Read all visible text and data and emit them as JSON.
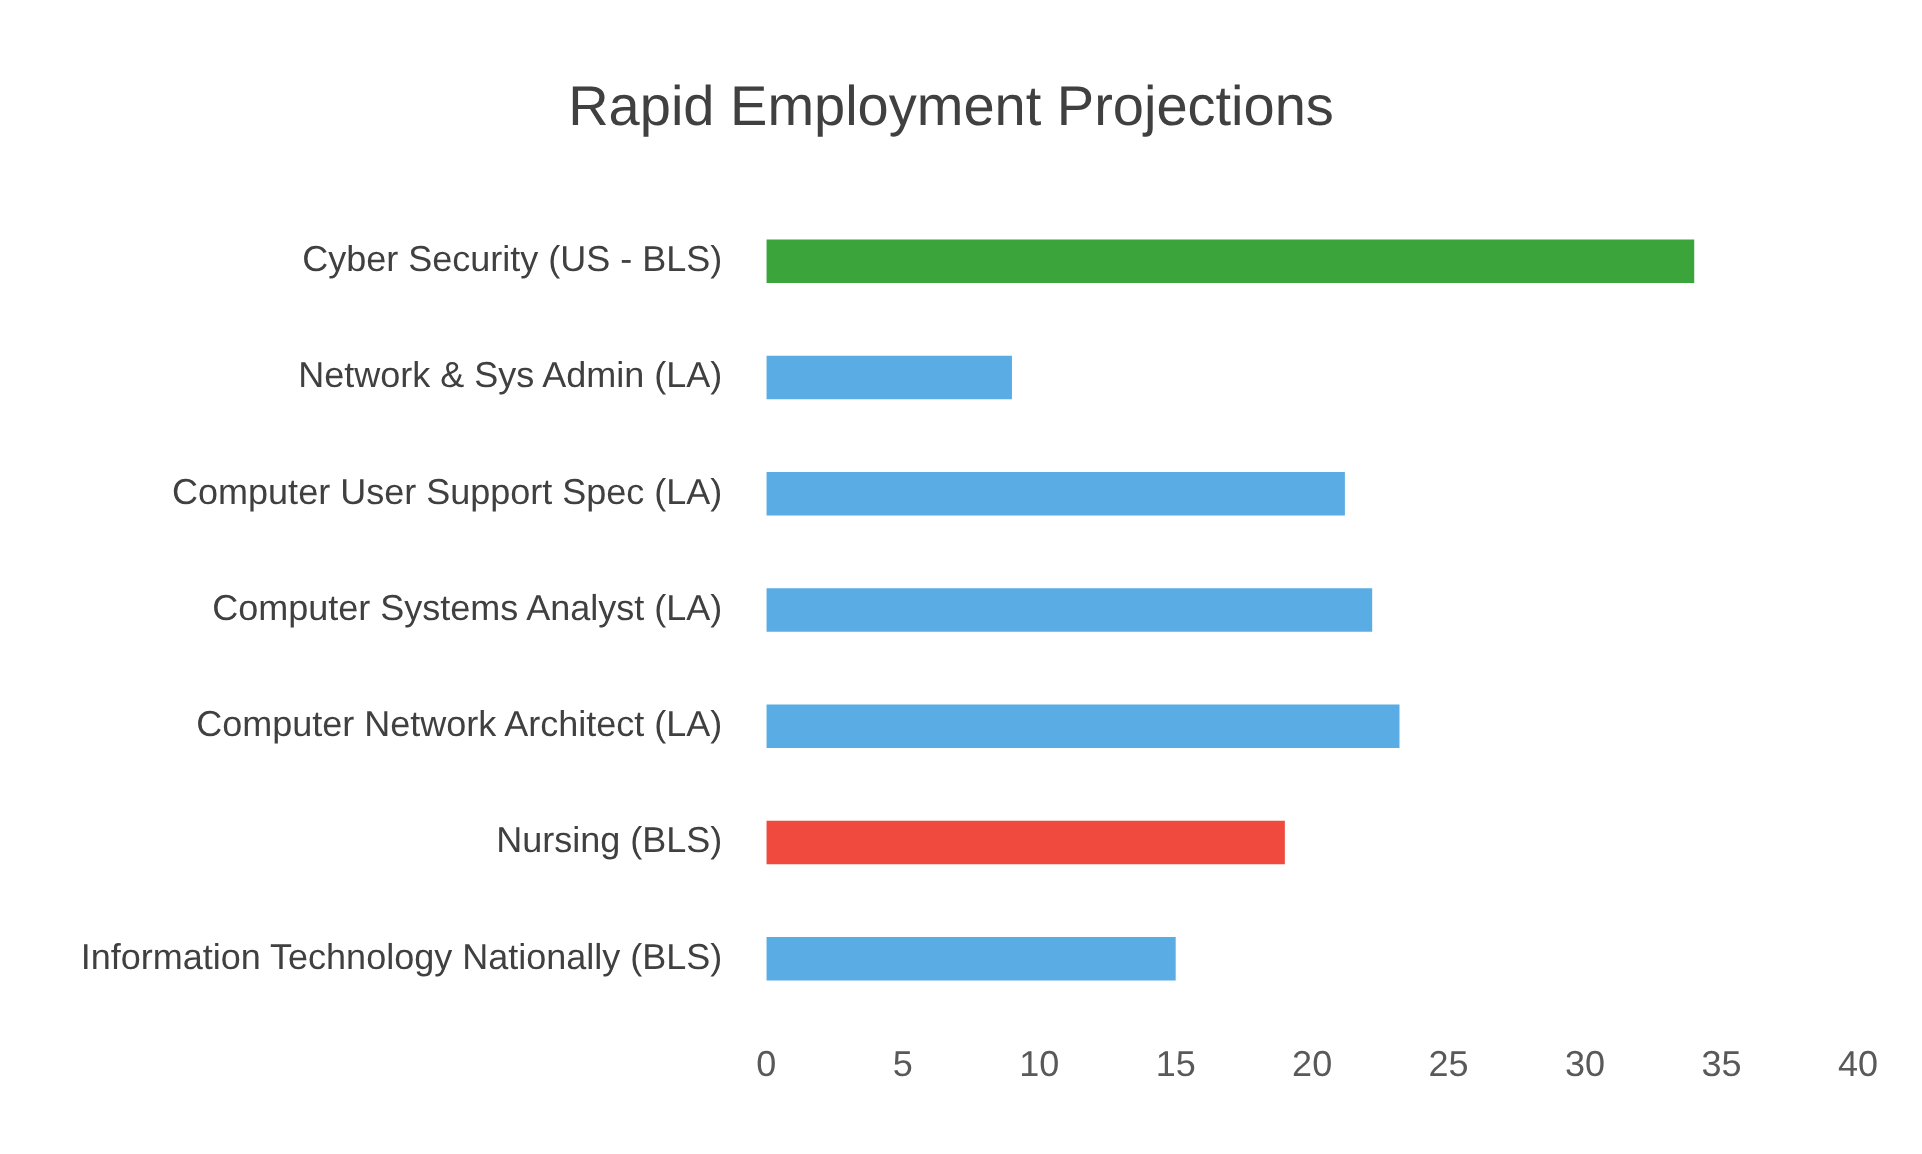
{
  "chart_data": {
    "type": "bar",
    "orientation": "horizontal",
    "title": "Rapid Employment Projections",
    "categories": [
      "Cyber Security (US - BLS)",
      "Network & Sys Admin (LA)",
      "Computer User Support Spec (LA)",
      "Computer Systems Analyst (LA)",
      "Computer Network Architect (LA)",
      "Nursing (BLS)",
      "Information Technology Nationally (BLS)"
    ],
    "values": [
      34,
      9,
      21.2,
      22.2,
      23.2,
      19,
      15
    ],
    "colors": [
      "#3ba53b",
      "#5aace4",
      "#5aace4",
      "#5aace4",
      "#5aace4",
      "#f04a3e",
      "#5aace4"
    ],
    "xlim": [
      0,
      40
    ],
    "xticks": [
      0,
      5,
      10,
      15,
      20,
      25,
      30,
      35,
      40
    ],
    "grid": false,
    "legend": false
  }
}
